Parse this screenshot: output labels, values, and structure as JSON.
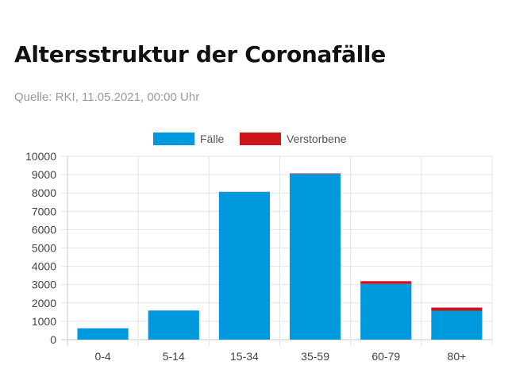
{
  "header": {
    "title": "Altersstruktur der Coronafälle",
    "source": "Quelle: RKI, 11.05.2021, 00:00 Uhr"
  },
  "colors": {
    "faelle": "#0099dd",
    "verstorbene": "#d0121b",
    "grid": "#e4e4e4",
    "axis": "#c8c8c8"
  },
  "chart_data": {
    "type": "bar",
    "stacked": true,
    "categories": [
      "0-4",
      "5-14",
      "15-34",
      "35-59",
      "60-79",
      "80+"
    ],
    "series": [
      {
        "name": "Fälle",
        "values": [
          620,
          1590,
          8060,
          9040,
          3040,
          1580
        ]
      },
      {
        "name": "Verstorbene",
        "values": [
          0,
          0,
          5,
          30,
          150,
          170
        ]
      }
    ],
    "ylim": [
      0,
      10000
    ],
    "yticks": [
      "0",
      "1000",
      "2000",
      "3000",
      "4000",
      "5000",
      "6000",
      "7000",
      "8000",
      "9000",
      "10000"
    ],
    "grid": true,
    "legend": "top-center"
  }
}
